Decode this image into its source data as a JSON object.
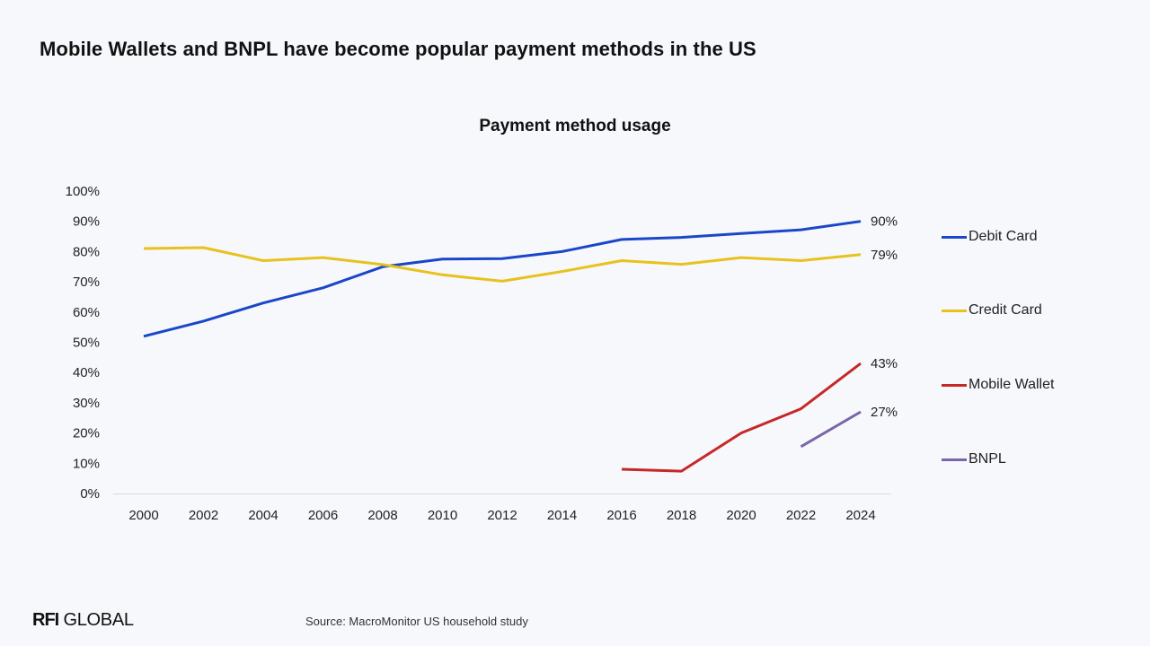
{
  "headline": "Mobile Wallets and BNPL have become popular payment methods in the US",
  "source": "Source: MacroMonitor US household study",
  "logo": {
    "bold": "RFI",
    "rest": " GLOBAL"
  },
  "chart_data": {
    "type": "line",
    "title": "Payment method usage",
    "xlabel": "",
    "ylabel": "",
    "x": [
      2000,
      2002,
      2004,
      2006,
      2008,
      2010,
      2012,
      2014,
      2016,
      2018,
      2020,
      2022,
      2024
    ],
    "ylim": [
      0,
      100
    ],
    "yticks": [
      "0%",
      "10%",
      "20%",
      "30%",
      "40%",
      "50%",
      "60%",
      "70%",
      "80%",
      "90%",
      "100%"
    ],
    "grid": false,
    "legend_position": "right",
    "series": [
      {
        "name": "Debit Card",
        "color": "#1a47c8",
        "values": [
          52,
          57,
          63,
          68,
          75,
          77.5,
          77.7,
          80,
          84,
          84.7,
          86,
          87.2,
          90
        ],
        "end_label": "90%"
      },
      {
        "name": "Credit Card",
        "color": "#e8c21c",
        "values": [
          81,
          81.3,
          77,
          78,
          75.7,
          72.3,
          70.2,
          73.4,
          77,
          75.8,
          78,
          77,
          79
        ],
        "end_label": "79%"
      },
      {
        "name": "Mobile Wallet",
        "color": "#c62828",
        "values": [
          null,
          null,
          null,
          null,
          null,
          null,
          null,
          null,
          8,
          7.4,
          20,
          28,
          43
        ],
        "end_label": "43%"
      },
      {
        "name": "BNPL",
        "color": "#7a66a8",
        "values": [
          null,
          null,
          null,
          null,
          null,
          null,
          null,
          null,
          null,
          null,
          null,
          15.5,
          27
        ],
        "end_label": "27%"
      }
    ]
  }
}
